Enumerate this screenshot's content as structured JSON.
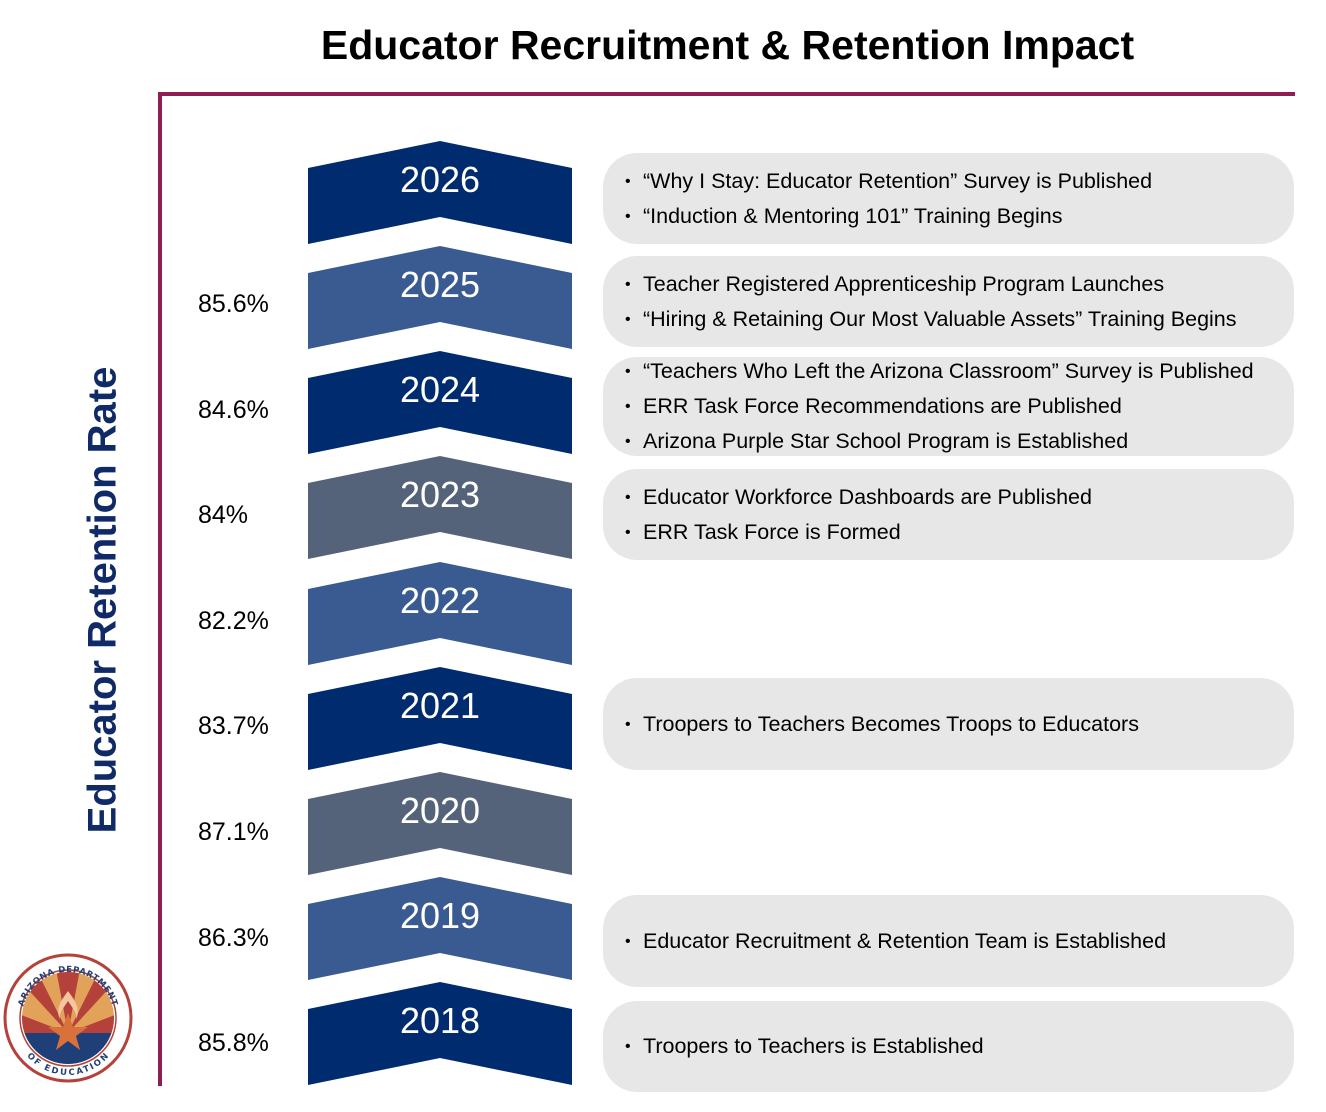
{
  "title": "Educator Recruitment & Retention Impact",
  "y_axis_label": "Educator Retention Rate",
  "colors": {
    "rule": "#8f1d55",
    "dark_chevron": "#002b6e",
    "mid_chevron": "#3a5a92",
    "slate_chevron": "#546379",
    "box": "#e7e7e7"
  },
  "timeline": [
    {
      "year": "2026",
      "rate": "",
      "events": [
        "“Why I Stay: Educator Retention” Survey is Published",
        "“Induction & Mentoring 101” Training Begins"
      ]
    },
    {
      "year": "2025",
      "rate": "85.6%",
      "events": [
        "Teacher Registered Apprenticeship Program Launches",
        "“Hiring & Retaining Our Most Valuable Assets” Training Begins"
      ]
    },
    {
      "year": "2024",
      "rate": "84.6%",
      "events": [
        "“Teachers Who Left the Arizona Classroom” Survey is Published",
        "ERR Task Force Recommendations are Published",
        "Arizona Purple Star School Program is Established"
      ]
    },
    {
      "year": "2023",
      "rate": "84%",
      "events": [
        "Educator Workforce Dashboards are Published",
        "ERR Task Force is Formed"
      ]
    },
    {
      "year": "2022",
      "rate": "82.2%",
      "events": []
    },
    {
      "year": "2021",
      "rate": "83.7%",
      "events": [
        "Troopers to Teachers Becomes Troops to Educators"
      ]
    },
    {
      "year": "2020",
      "rate": "87.1%",
      "events": []
    },
    {
      "year": "2019",
      "rate": "86.3%",
      "events": [
        "Educator Recruitment & Retention Team is Established"
      ]
    },
    {
      "year": "2018",
      "rate": "85.8%",
      "events": [
        "Troopers to Teachers is Established"
      ]
    }
  ],
  "logo": {
    "text_top": "ARIZONA DEPARTMENT",
    "text_bottom": "OF EDUCATION"
  }
}
